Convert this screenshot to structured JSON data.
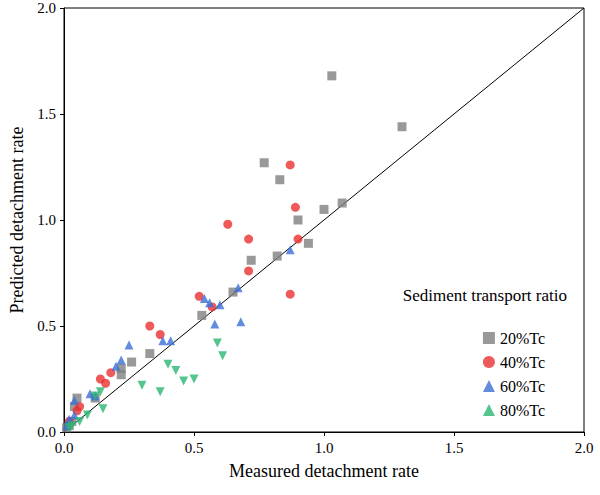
{
  "chart_data": {
    "type": "scatter",
    "x_label": "Measured detachment rate",
    "y_label": "Predicted detachment rate",
    "legend_title": "Sediment transport ratio",
    "legend": "lower right",
    "grid": false,
    "xlim": [
      0,
      2
    ],
    "ylim": [
      0,
      2
    ],
    "xticks": [
      {
        "value": 0,
        "label": "0.0"
      },
      0.5,
      {
        "value": 1,
        "label": "1.0"
      },
      1.5,
      {
        "value": 2,
        "label": "2.0"
      }
    ],
    "yticks": [
      {
        "value": 0,
        "label": "0.0"
      },
      0.5,
      {
        "value": 1,
        "label": "1.0"
      },
      1.5,
      {
        "value": 2,
        "label": "2.0"
      }
    ],
    "series": [
      {
        "name": "20%Tc",
        "color": "#7f7f7f",
        "marker": "square",
        "x": [
          1.03,
          1.3,
          0.77,
          0.83,
          1.07,
          1.0,
          0.9,
          0.94,
          0.82,
          0.72,
          0.65,
          0.53,
          0.33,
          0.26,
          0.22,
          0.22,
          0.12,
          0.05,
          0.04,
          0.03,
          0.02,
          0.01
        ],
        "values": [
          1.68,
          1.44,
          1.27,
          1.19,
          1.08,
          1.05,
          1.0,
          0.89,
          0.83,
          0.81,
          0.66,
          0.55,
          0.37,
          0.33,
          0.3,
          0.27,
          0.16,
          0.16,
          0.12,
          0.05,
          0.03,
          0.02
        ]
      },
      {
        "name": "40%Tc",
        "color": "#e8312f",
        "marker": "circle",
        "x": [
          0.87,
          0.89,
          0.9,
          0.71,
          0.63,
          0.71,
          0.87,
          0.52,
          0.57,
          0.37,
          0.33,
          0.18,
          0.16,
          0.14,
          0.06,
          0.05,
          0.02
        ],
        "values": [
          1.26,
          1.06,
          0.91,
          0.91,
          0.98,
          0.76,
          0.65,
          0.64,
          0.59,
          0.46,
          0.5,
          0.28,
          0.23,
          0.25,
          0.12,
          0.1,
          0.05
        ]
      },
      {
        "name": "60%Tc",
        "color": "#3c6fd6",
        "marker": "triangle",
        "x": [
          0.87,
          0.67,
          0.68,
          0.54,
          0.56,
          0.6,
          0.58,
          0.41,
          0.38,
          0.25,
          0.22,
          0.2,
          0.12,
          0.1,
          0.04,
          0.04,
          0.02,
          0.01
        ],
        "values": [
          0.86,
          0.68,
          0.52,
          0.63,
          0.61,
          0.6,
          0.51,
          0.43,
          0.43,
          0.41,
          0.34,
          0.31,
          0.17,
          0.18,
          0.15,
          0.08,
          0.06,
          0.03
        ]
      },
      {
        "name": "80%Tc",
        "color": "#2bb673",
        "marker": "triangle-down",
        "x": [
          0.59,
          0.61,
          0.4,
          0.43,
          0.5,
          0.46,
          0.3,
          0.37,
          0.14,
          0.12,
          0.15,
          0.09,
          0.06,
          0.03,
          0.02
        ],
        "values": [
          0.42,
          0.36,
          0.32,
          0.29,
          0.25,
          0.24,
          0.22,
          0.19,
          0.19,
          0.17,
          0.11,
          0.08,
          0.05,
          0.03,
          0.02
        ]
      }
    ]
  }
}
